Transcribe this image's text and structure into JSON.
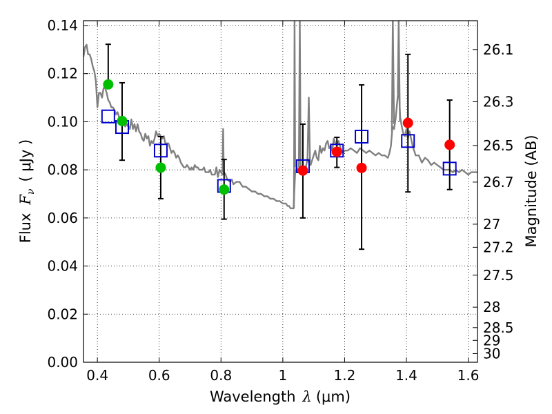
{
  "chart_data": {
    "type": "scatter",
    "xlabel_prefix": "Wavelength",
    "xlabel_symbol": "λ",
    "xlabel_unit": "(μm)",
    "ylabel_prefix": "Flux",
    "ylabel_symbol": "F",
    "ylabel_sub": "ν",
    "ylabel_unit": "( μJy )",
    "y2label": "Magnitude (AB)",
    "xlim": [
      0.355,
      1.63
    ],
    "ylim": [
      0.0,
      0.142
    ],
    "x_ticks": [
      0.4,
      0.6,
      0.8,
      1.0,
      1.2,
      1.4,
      1.6
    ],
    "x_tick_labels": [
      "0.4",
      "0.6",
      "0.8",
      "1",
      "1.2",
      "1.4",
      "1.6"
    ],
    "y_ticks": [
      0.0,
      0.02,
      0.04,
      0.06,
      0.08,
      0.1,
      0.12,
      0.14
    ],
    "y_tick_labels": [
      "0.00",
      "0.02",
      "0.04",
      "0.06",
      "0.08",
      "0.10",
      "0.12",
      "0.14"
    ],
    "mag_ticks": [
      {
        "label": "26.1",
        "flux": 0.13
      },
      {
        "label": "26.3",
        "flux": 0.1083
      },
      {
        "label": "26.5",
        "flux": 0.0901
      },
      {
        "label": "26.7",
        "flux": 0.0749
      },
      {
        "label": "27",
        "flux": 0.0574
      },
      {
        "label": "27.2",
        "flux": 0.0478
      },
      {
        "label": "27.5",
        "flux": 0.0362
      },
      {
        "label": "28",
        "flux": 0.0229
      },
      {
        "label": "28.5",
        "flux": 0.0144
      },
      {
        "label": "29",
        "flux": 0.0091
      },
      {
        "label": "30",
        "flux": 0.0036
      }
    ],
    "grid": true,
    "colors": {
      "model": "#808080",
      "green": "#00bf00",
      "red": "#ff0000",
      "box": "#0000cc",
      "error": "#000000"
    },
    "series": [
      {
        "name": "model-sed",
        "style": "line",
        "points": [
          [
            0.355,
            0.127
          ],
          [
            0.36,
            0.131
          ],
          [
            0.365,
            0.132
          ],
          [
            0.37,
            0.128
          ],
          [
            0.375,
            0.128
          ],
          [
            0.38,
            0.126
          ],
          [
            0.385,
            0.123
          ],
          [
            0.39,
            0.121
          ],
          [
            0.395,
            0.117
          ],
          [
            0.4,
            0.106
          ],
          [
            0.405,
            0.112
          ],
          [
            0.41,
            0.112
          ],
          [
            0.415,
            0.11
          ],
          [
            0.42,
            0.114
          ],
          [
            0.425,
            0.114
          ],
          [
            0.43,
            0.112
          ],
          [
            0.435,
            0.109
          ],
          [
            0.44,
            0.108
          ],
          [
            0.445,
            0.106
          ],
          [
            0.45,
            0.106
          ],
          [
            0.455,
            0.105
          ],
          [
            0.46,
            0.103
          ],
          [
            0.465,
            0.104
          ],
          [
            0.47,
            0.102
          ],
          [
            0.475,
            0.101
          ],
          [
            0.48,
            0.1
          ],
          [
            0.485,
            0.099
          ],
          [
            0.49,
            0.098
          ],
          [
            0.495,
            0.099
          ],
          [
            0.5,
            0.098
          ],
          [
            0.505,
            0.097
          ],
          [
            0.51,
            0.101
          ],
          [
            0.515,
            0.097
          ],
          [
            0.52,
            0.099
          ],
          [
            0.525,
            0.096
          ],
          [
            0.53,
            0.099
          ],
          [
            0.535,
            0.096
          ],
          [
            0.54,
            0.095
          ],
          [
            0.545,
            0.093
          ],
          [
            0.55,
            0.092
          ],
          [
            0.555,
            0.095
          ],
          [
            0.56,
            0.093
          ],
          [
            0.565,
            0.094
          ],
          [
            0.57,
            0.09
          ],
          [
            0.575,
            0.092
          ],
          [
            0.58,
            0.091
          ],
          [
            0.585,
            0.093
          ],
          [
            0.59,
            0.096
          ],
          [
            0.595,
            0.094
          ],
          [
            0.6,
            0.095
          ],
          [
            0.605,
            0.094
          ],
          [
            0.61,
            0.093
          ],
          [
            0.615,
            0.094
          ],
          [
            0.62,
            0.091
          ],
          [
            0.625,
            0.091
          ],
          [
            0.63,
            0.091
          ],
          [
            0.635,
            0.089
          ],
          [
            0.64,
            0.087
          ],
          [
            0.645,
            0.088
          ],
          [
            0.65,
            0.087
          ],
          [
            0.655,
            0.085
          ],
          [
            0.66,
            0.086
          ],
          [
            0.665,
            0.085
          ],
          [
            0.67,
            0.083
          ],
          [
            0.675,
            0.082
          ],
          [
            0.68,
            0.081
          ],
          [
            0.685,
            0.081
          ],
          [
            0.69,
            0.082
          ],
          [
            0.695,
            0.081
          ],
          [
            0.7,
            0.08
          ],
          [
            0.705,
            0.081
          ],
          [
            0.71,
            0.08
          ],
          [
            0.715,
            0.082
          ],
          [
            0.72,
            0.081
          ],
          [
            0.725,
            0.081
          ],
          [
            0.73,
            0.08
          ],
          [
            0.74,
            0.08
          ],
          [
            0.745,
            0.081
          ],
          [
            0.75,
            0.079
          ],
          [
            0.76,
            0.079
          ],
          [
            0.765,
            0.08
          ],
          [
            0.77,
            0.078
          ],
          [
            0.78,
            0.078
          ],
          [
            0.785,
            0.081
          ],
          [
            0.79,
            0.077
          ],
          [
            0.795,
            0.08
          ],
          [
            0.8,
            0.079
          ],
          [
            0.805,
            0.078
          ],
          [
            0.81,
            0.079
          ],
          [
            0.815,
            0.078
          ],
          [
            0.82,
            0.076
          ],
          [
            0.83,
            0.075
          ],
          [
            0.835,
            0.076
          ],
          [
            0.84,
            0.074
          ],
          [
            0.85,
            0.075
          ],
          [
            0.86,
            0.075
          ],
          [
            0.87,
            0.073
          ],
          [
            0.88,
            0.073
          ],
          [
            0.89,
            0.072
          ],
          [
            0.9,
            0.071
          ],
          [
            0.91,
            0.071
          ],
          [
            0.92,
            0.07
          ],
          [
            0.93,
            0.07
          ],
          [
            0.94,
            0.069
          ],
          [
            0.95,
            0.069
          ],
          [
            0.96,
            0.068
          ],
          [
            0.97,
            0.068
          ],
          [
            0.98,
            0.067
          ],
          [
            0.99,
            0.067
          ],
          [
            1.0,
            0.066
          ],
          [
            1.005,
            0.066
          ],
          [
            1.01,
            0.066
          ],
          [
            1.015,
            0.065
          ],
          [
            1.02,
            0.065
          ],
          [
            1.025,
            0.064
          ],
          [
            1.03,
            0.064
          ],
          [
            1.035,
            0.064
          ],
          [
            1.04,
            0.079
          ],
          [
            1.045,
            0.081
          ],
          [
            1.05,
            0.079
          ],
          [
            1.055,
            0.08
          ],
          [
            1.06,
            0.081
          ],
          [
            1.065,
            0.08
          ],
          [
            1.07,
            0.079
          ],
          [
            1.075,
            0.081
          ],
          [
            1.08,
            0.085
          ],
          [
            1.085,
            0.083
          ],
          [
            1.09,
            0.082
          ],
          [
            1.095,
            0.084
          ],
          [
            1.1,
            0.086
          ],
          [
            1.105,
            0.088
          ],
          [
            1.11,
            0.085
          ],
          [
            1.115,
            0.084
          ],
          [
            1.12,
            0.09
          ],
          [
            1.125,
            0.087
          ],
          [
            1.13,
            0.089
          ],
          [
            1.135,
            0.088
          ],
          [
            1.14,
            0.091
          ],
          [
            1.145,
            0.092
          ],
          [
            1.15,
            0.089
          ],
          [
            1.155,
            0.09
          ],
          [
            1.16,
            0.088
          ],
          [
            1.165,
            0.093
          ],
          [
            1.17,
            0.091
          ],
          [
            1.175,
            0.09
          ],
          [
            1.18,
            0.092
          ],
          [
            1.185,
            0.09
          ],
          [
            1.19,
            0.088
          ],
          [
            1.195,
            0.087
          ],
          [
            1.2,
            0.088
          ],
          [
            1.21,
            0.088
          ],
          [
            1.22,
            0.089
          ],
          [
            1.23,
            0.088
          ],
          [
            1.24,
            0.087
          ],
          [
            1.25,
            0.089
          ],
          [
            1.26,
            0.088
          ],
          [
            1.27,
            0.087
          ],
          [
            1.28,
            0.088
          ],
          [
            1.29,
            0.087
          ],
          [
            1.3,
            0.086
          ],
          [
            1.31,
            0.087
          ],
          [
            1.32,
            0.086
          ],
          [
            1.33,
            0.086
          ],
          [
            1.34,
            0.085
          ],
          [
            1.345,
            0.087
          ],
          [
            1.35,
            0.09
          ],
          [
            1.355,
            0.098
          ],
          [
            1.36,
            0.097
          ],
          [
            1.365,
            0.101
          ],
          [
            1.37,
            0.108
          ],
          [
            1.375,
            0.115
          ],
          [
            1.38,
            0.102
          ],
          [
            1.385,
            0.098
          ],
          [
            1.39,
            0.095
          ],
          [
            1.395,
            0.094
          ],
          [
            1.4,
            0.097
          ],
          [
            1.405,
            0.093
          ],
          [
            1.41,
            0.096
          ],
          [
            1.42,
            0.09
          ],
          [
            1.43,
            0.086
          ],
          [
            1.44,
            0.086
          ],
          [
            1.45,
            0.083
          ],
          [
            1.46,
            0.085
          ],
          [
            1.47,
            0.084
          ],
          [
            1.48,
            0.082
          ],
          [
            1.49,
            0.083
          ],
          [
            1.5,
            0.082
          ],
          [
            1.51,
            0.081
          ],
          [
            1.52,
            0.08
          ],
          [
            1.53,
            0.08
          ],
          [
            1.54,
            0.08
          ],
          [
            1.55,
            0.079
          ],
          [
            1.56,
            0.08
          ],
          [
            1.57,
            0.079
          ],
          [
            1.58,
            0.08
          ],
          [
            1.59,
            0.079
          ],
          [
            1.6,
            0.078
          ],
          [
            1.61,
            0.079
          ],
          [
            1.62,
            0.079
          ],
          [
            1.63,
            0.079
          ]
        ]
      },
      {
        "name": "model-emission-lines",
        "style": "line",
        "segments": [
          [
            [
              0.805,
              0.079
            ],
            [
              0.807,
              0.097
            ],
            [
              0.809,
              0.079
            ]
          ],
          [
            [
              1.036,
              0.064
            ],
            [
              1.038,
              0.142
            ],
            [
              1.04,
              0.081
            ]
          ],
          [
            [
              1.052,
              0.081
            ],
            [
              1.055,
              0.142
            ],
            [
              1.058,
              0.08
            ]
          ],
          [
            [
              1.08,
              0.085
            ],
            [
              1.084,
              0.11
            ],
            [
              1.088,
              0.083
            ]
          ],
          [
            [
              1.353,
              0.096
            ],
            [
              1.356,
              0.142
            ],
            [
              1.36,
              0.099
            ]
          ],
          [
            [
              1.372,
              0.112
            ],
            [
              1.375,
              0.142
            ],
            [
              1.379,
              0.1
            ]
          ]
        ]
      },
      {
        "name": "observed-green",
        "style": "markers",
        "x": [
          0.435,
          0.48,
          0.605,
          0.81
        ],
        "y": [
          0.1155,
          0.1003,
          0.0809,
          0.0718
        ],
        "yerr_low": [
          0.1155,
          0.084,
          0.068,
          0.0595
        ],
        "yerr_high": [
          0.1322,
          0.1162,
          0.0938,
          0.0843
        ]
      },
      {
        "name": "observed-red",
        "style": "markers",
        "x": [
          1.065,
          1.175,
          1.255,
          1.405,
          1.54
        ],
        "y": [
          0.0797,
          0.0875,
          0.0808,
          0.0995,
          0.0904
        ],
        "yerr_low": [
          0.06,
          0.081,
          0.047,
          0.0708,
          0.0718
        ],
        "yerr_high": [
          0.099,
          0.0935,
          0.1153,
          0.128,
          0.109
        ]
      },
      {
        "name": "model-photometry",
        "style": "open-squares",
        "x": [
          0.435,
          0.48,
          0.605,
          0.81,
          1.065,
          1.175,
          1.255,
          1.405,
          1.54
        ],
        "y": [
          0.1022,
          0.0978,
          0.088,
          0.0733,
          0.0815,
          0.088,
          0.0938,
          0.092,
          0.0805
        ]
      }
    ]
  }
}
